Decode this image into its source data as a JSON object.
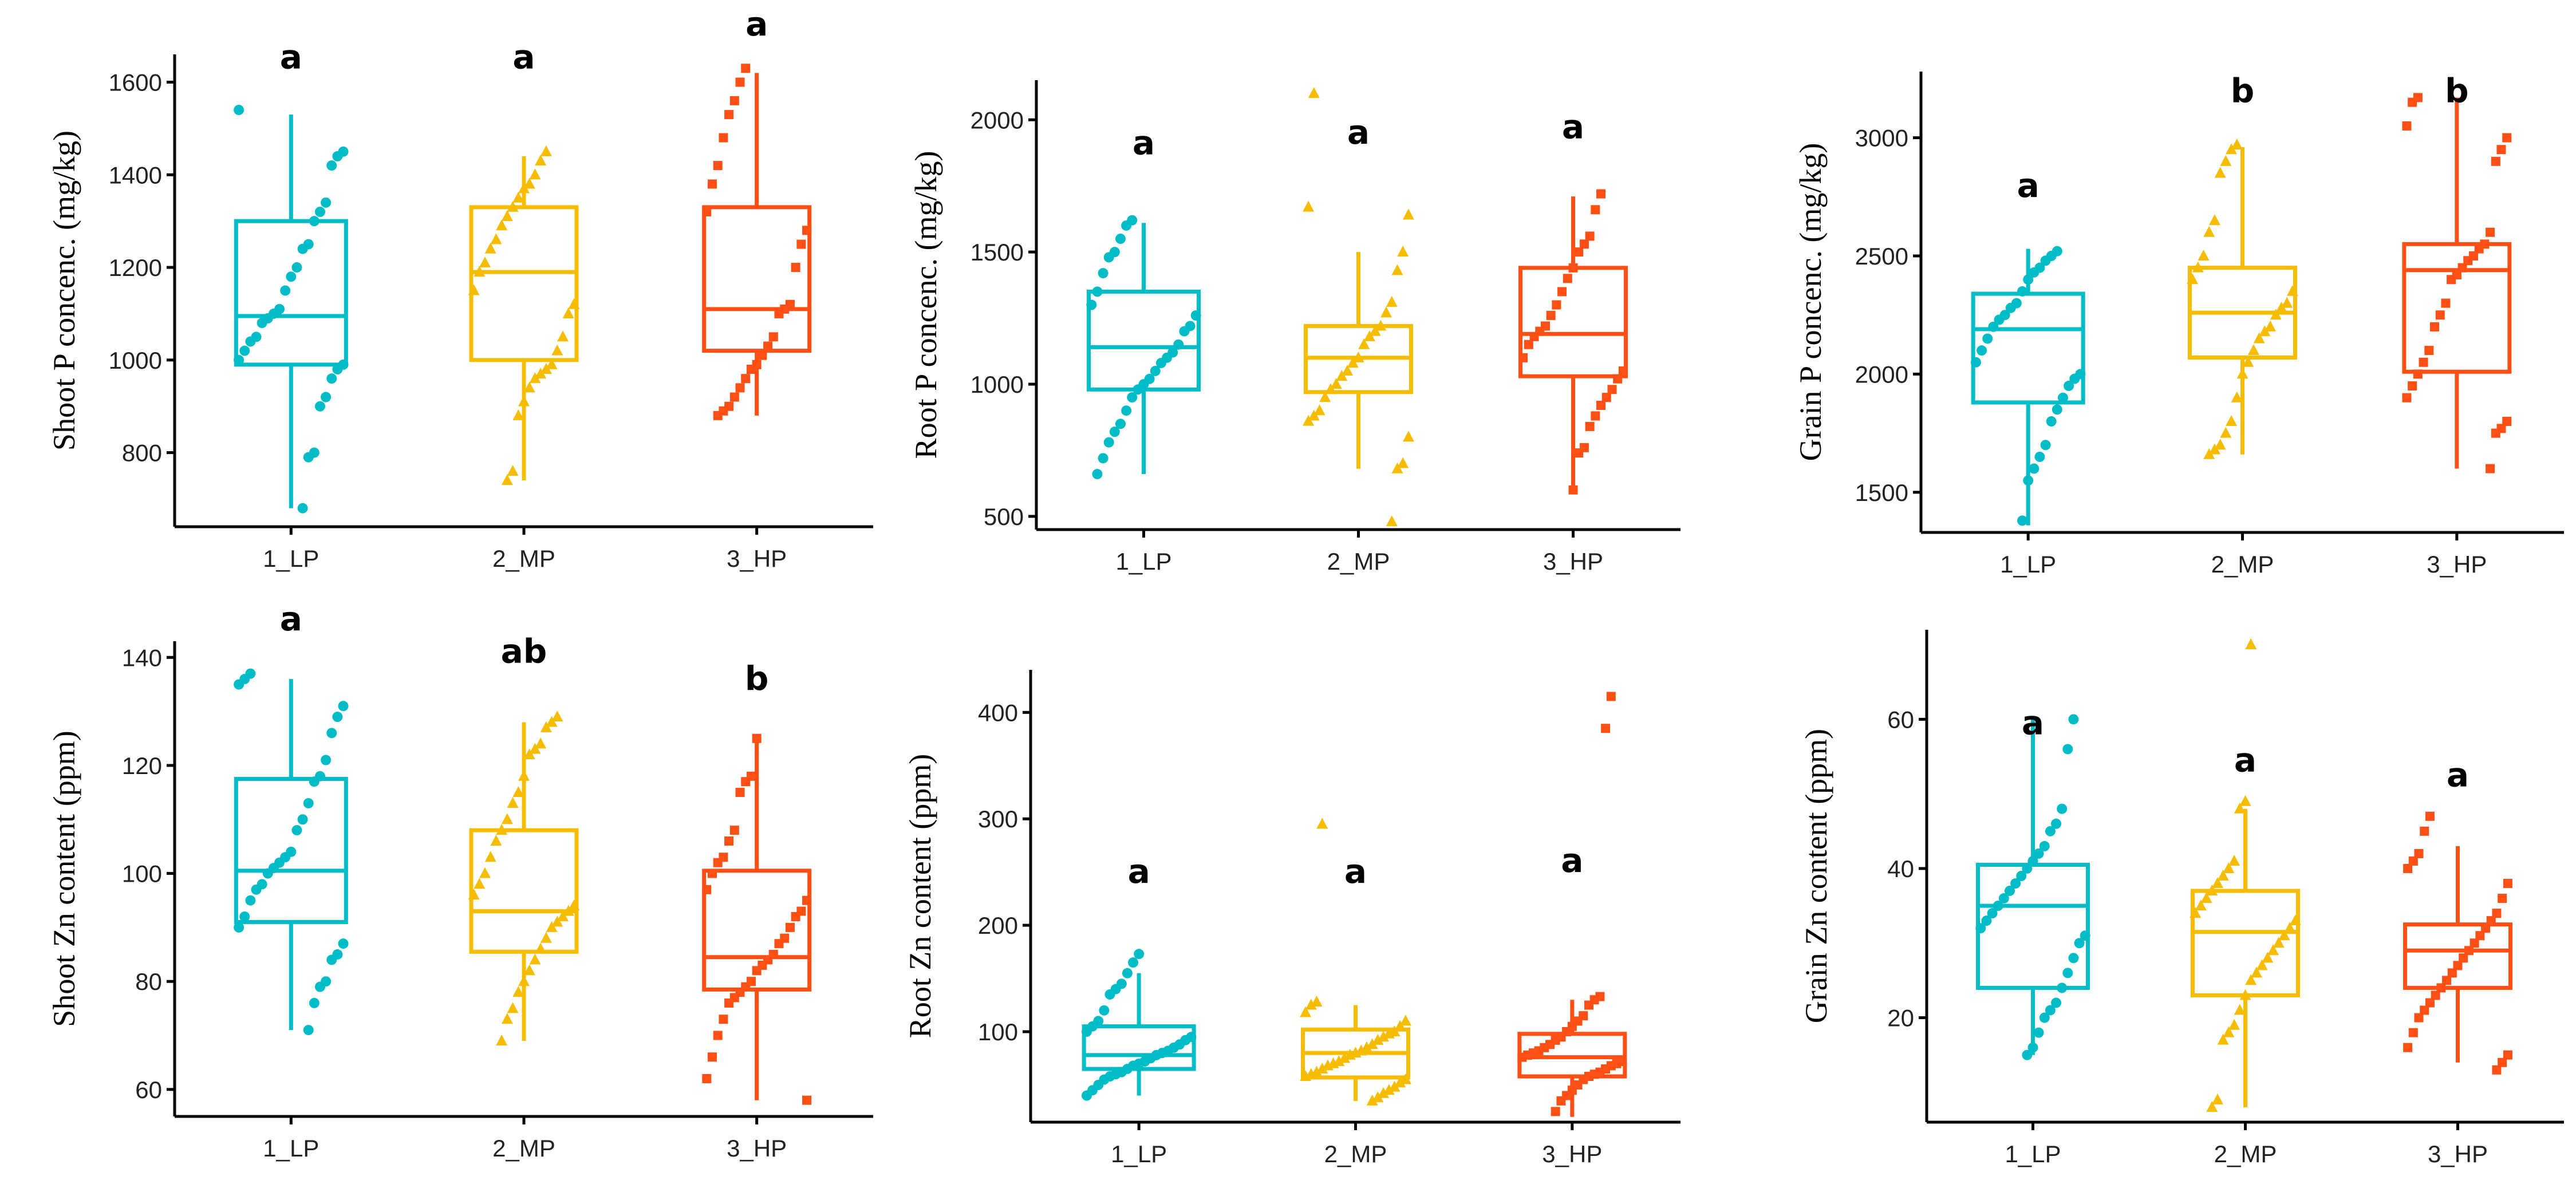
{
  "colors": {
    "1_LP": "#00BCC6",
    "2_MP": "#F5BC00",
    "3_HP": "#FF4F14"
  },
  "chart_data": [
    {
      "type": "box",
      "title": "",
      "ylabel": "Shoot P concenc. (mg/kg)",
      "categories": [
        "1_LP",
        "2_MP",
        "3_HP"
      ],
      "ylim": [
        640,
        1660
      ],
      "yticks": [
        800,
        1000,
        1200,
        1400,
        1600
      ],
      "boxes": [
        {
          "q1": 990,
          "median": 1095,
          "q3": 1300,
          "whisker_low": 680,
          "whisker_high": 1530
        },
        {
          "q1": 1000,
          "median": 1190,
          "q3": 1330,
          "whisker_low": 740,
          "whisker_high": 1440
        },
        {
          "q1": 1020,
          "median": 1110,
          "q3": 1330,
          "whisker_low": 880,
          "whisker_high": 1620
        }
      ],
      "letters": [
        "a",
        "a",
        "a"
      ],
      "letter_y": [
        1630,
        1630,
        1720
      ],
      "points": [
        [
          1540,
          1450,
          1440,
          1420,
          1340,
          1320,
          1300,
          1250,
          1240,
          1200,
          1180,
          1150,
          1110,
          1100,
          1090,
          1080,
          1050,
          1040,
          1020,
          1000,
          990,
          980,
          960,
          920,
          900,
          800,
          790,
          680
        ],
        [
          1450,
          1430,
          1400,
          1380,
          1370,
          1350,
          1330,
          1310,
          1290,
          1260,
          1240,
          1210,
          1190,
          1150,
          1120,
          1100,
          1050,
          1020,
          990,
          980,
          970,
          960,
          940,
          910,
          880,
          760,
          740
        ],
        [
          1630,
          1600,
          1560,
          1530,
          1480,
          1420,
          1380,
          1320,
          1280,
          1250,
          1200,
          1120,
          1110,
          1100,
          1050,
          1030,
          1010,
          990,
          980,
          960,
          940,
          920,
          900,
          890,
          880
        ]
      ]
    },
    {
      "type": "box",
      "title": "",
      "ylabel": "Root P concenc. (mg/kg)",
      "categories": [
        "1_LP",
        "2_MP",
        "3_HP"
      ],
      "ylim": [
        450,
        2150
      ],
      "yticks": [
        500,
        1000,
        1500,
        2000
      ],
      "boxes": [
        {
          "q1": 980,
          "median": 1140,
          "q3": 1350,
          "whisker_low": 660,
          "whisker_high": 1610
        },
        {
          "q1": 970,
          "median": 1100,
          "q3": 1220,
          "whisker_low": 680,
          "whisker_high": 1500
        },
        {
          "q1": 1030,
          "median": 1190,
          "q3": 1440,
          "whisker_low": 600,
          "whisker_high": 1710
        }
      ],
      "letters": [
        "a",
        "a",
        "a"
      ],
      "letter_y": [
        1870,
        1910,
        1930
      ],
      "points": [
        [
          1620,
          1600,
          1550,
          1500,
          1480,
          1420,
          1350,
          1300,
          1260,
          1220,
          1200,
          1150,
          1120,
          1100,
          1080,
          1050,
          1020,
          1000,
          980,
          950,
          900,
          850,
          820,
          780,
          720,
          660
        ],
        [
          2100,
          1670,
          1640,
          1500,
          1430,
          1310,
          1270,
          1220,
          1200,
          1180,
          1150,
          1100,
          1080,
          1050,
          1030,
          1000,
          980,
          950,
          900,
          880,
          860,
          800,
          700,
          680,
          480
        ],
        [
          1720,
          1660,
          1560,
          1530,
          1500,
          1440,
          1400,
          1350,
          1300,
          1260,
          1220,
          1200,
          1180,
          1150,
          1100,
          1050,
          1020,
          980,
          950,
          920,
          880,
          840,
          760,
          740,
          600
        ]
      ]
    },
    {
      "type": "box",
      "title": "",
      "ylabel": "Grain P concenc. (mg/kg)",
      "categories": [
        "1_LP",
        "2_MP",
        "3_HP"
      ],
      "ylim": [
        1330,
        3280
      ],
      "yticks": [
        1500,
        2000,
        2500,
        3000
      ],
      "boxes": [
        {
          "q1": 1880,
          "median": 2190,
          "q3": 2340,
          "whisker_low": 1360,
          "whisker_high": 2530
        },
        {
          "q1": 2070,
          "median": 2260,
          "q3": 2450,
          "whisker_low": 1660,
          "whisker_high": 2960
        },
        {
          "q1": 2010,
          "median": 2440,
          "q3": 2550,
          "whisker_low": 1600,
          "whisker_high": 3170
        }
      ],
      "letters": [
        "a",
        "b",
        "b"
      ],
      "letter_y": [
        2750,
        3150,
        3150
      ],
      "points": [
        [
          2520,
          2500,
          2480,
          2450,
          2430,
          2400,
          2350,
          2300,
          2280,
          2250,
          2230,
          2200,
          2150,
          2100,
          2050,
          2000,
          1980,
          1950,
          1900,
          1850,
          1800,
          1700,
          1650,
          1600,
          1550,
          1380
        ],
        [
          2970,
          2950,
          2900,
          2850,
          2650,
          2600,
          2500,
          2450,
          2400,
          2350,
          2300,
          2280,
          2250,
          2200,
          2180,
          2150,
          2100,
          2050,
          2000,
          1900,
          1800,
          1750,
          1700,
          1680,
          1660
        ],
        [
          3170,
          3150,
          3050,
          3000,
          2950,
          2900,
          2600,
          2550,
          2530,
          2500,
          2480,
          2450,
          2420,
          2400,
          2300,
          2250,
          2200,
          2100,
          2050,
          2000,
          1950,
          1900,
          1800,
          1770,
          1750,
          1600
        ]
      ]
    },
    {
      "type": "box",
      "title": "",
      "ylabel": "Shoot Zn content (ppm)",
      "categories": [
        "1_LP",
        "2_MP",
        "3_HP"
      ],
      "ylim": [
        55,
        143
      ],
      "yticks": [
        60,
        80,
        100,
        120,
        140
      ],
      "boxes": [
        {
          "q1": 91,
          "median": 100.5,
          "q3": 117.5,
          "whisker_low": 71,
          "whisker_high": 136
        },
        {
          "q1": 85.5,
          "median": 93,
          "q3": 108,
          "whisker_low": 69,
          "whisker_high": 128
        },
        {
          "q1": 78.5,
          "median": 84.5,
          "q3": 100.5,
          "whisker_low": 58,
          "whisker_high": 125
        }
      ],
      "letters": [
        "a",
        "ab",
        "b"
      ],
      "letter_y": [
        145,
        139,
        134
      ],
      "points": [
        [
          137,
          136,
          135,
          131,
          129,
          126,
          121,
          118,
          117,
          113,
          110,
          108,
          104,
          103,
          102,
          101,
          100,
          98,
          97,
          95,
          92,
          90,
          87,
          85,
          84,
          80,
          79,
          76,
          71
        ],
        [
          129,
          128,
          127,
          124,
          123,
          122,
          118,
          115,
          113,
          110,
          108,
          106,
          103,
          100,
          98,
          96,
          94,
          93,
          92,
          91,
          90,
          88,
          86,
          84,
          82,
          80,
          78,
          75,
          73,
          69
        ],
        [
          125,
          118,
          117,
          115,
          108,
          106,
          103,
          102,
          100,
          97,
          95,
          93,
          92,
          90,
          88,
          87,
          85,
          84,
          83,
          82,
          80,
          79,
          78,
          77,
          76,
          73,
          70,
          66,
          62,
          58
        ]
      ]
    },
    {
      "type": "box",
      "title": "",
      "ylabel": "Root Zn content (ppm)",
      "categories": [
        "1_LP",
        "2_MP",
        "3_HP"
      ],
      "ylim": [
        15,
        440
      ],
      "yticks": [
        100,
        200,
        300,
        400
      ],
      "boxes": [
        {
          "q1": 65,
          "median": 78,
          "q3": 105,
          "whisker_low": 40,
          "whisker_high": 155
        },
        {
          "q1": 57,
          "median": 80,
          "q3": 102,
          "whisker_low": 35,
          "whisker_high": 125
        },
        {
          "q1": 58,
          "median": 76,
          "q3": 98,
          "whisker_low": 20,
          "whisker_high": 130
        }
      ],
      "letters": [
        "a",
        "a",
        "a"
      ],
      "letter_y": [
        240,
        240,
        250
      ],
      "points": [
        [
          173,
          165,
          155,
          145,
          140,
          135,
          120,
          110,
          105,
          100,
          95,
          92,
          88,
          85,
          82,
          80,
          78,
          75,
          72,
          70,
          68,
          65,
          62,
          60,
          58,
          55,
          50,
          45,
          40
        ],
        [
          295,
          128,
          125,
          118,
          110,
          105,
          100,
          98,
          95,
          92,
          88,
          85,
          82,
          80,
          78,
          75,
          72,
          70,
          68,
          65,
          62,
          60,
          58,
          55,
          52,
          48,
          45,
          42,
          38,
          35
        ],
        [
          415,
          385,
          133,
          130,
          125,
          115,
          110,
          105,
          100,
          95,
          92,
          88,
          85,
          82,
          80,
          78,
          76,
          72,
          70,
          68,
          65,
          62,
          60,
          58,
          55,
          50,
          45,
          40,
          35,
          25
        ]
      ]
    },
    {
      "type": "box",
      "title": "",
      "ylabel": "Grain Zn content (ppm)",
      "categories": [
        "1_LP",
        "2_MP",
        "3_HP"
      ],
      "ylim": [
        6,
        72
      ],
      "yticks": [
        20,
        40,
        60
      ],
      "boxes": [
        {
          "q1": 24,
          "median": 35,
          "q3": 40.5,
          "whisker_low": 15,
          "whisker_high": 60
        },
        {
          "q1": 23,
          "median": 31.5,
          "q3": 37,
          "whisker_low": 8,
          "whisker_high": 48
        },
        {
          "q1": 24,
          "median": 29,
          "q3": 32.5,
          "whisker_low": 14,
          "whisker_high": 43
        }
      ],
      "letters": [
        "a",
        "a",
        "a"
      ],
      "letter_y": [
        58,
        53,
        51
      ],
      "points": [
        [
          60,
          56,
          48,
          46,
          45,
          43,
          42,
          41,
          40,
          39,
          38,
          37,
          36,
          35,
          34,
          33,
          32,
          31,
          30,
          28,
          26,
          24,
          22,
          21,
          20,
          18,
          16,
          15
        ],
        [
          70,
          49,
          48,
          41,
          40,
          39,
          38,
          37,
          36,
          35,
          34,
          33,
          32,
          31,
          30,
          29,
          28,
          27,
          26,
          25,
          23,
          21,
          19,
          18,
          17,
          9,
          8
        ],
        [
          47,
          45,
          42,
          41,
          40,
          38,
          36,
          34,
          33,
          32,
          31,
          30,
          29,
          28,
          27,
          26,
          25,
          24,
          23,
          22,
          21,
          20,
          18,
          16,
          15,
          14,
          13
        ]
      ]
    }
  ]
}
